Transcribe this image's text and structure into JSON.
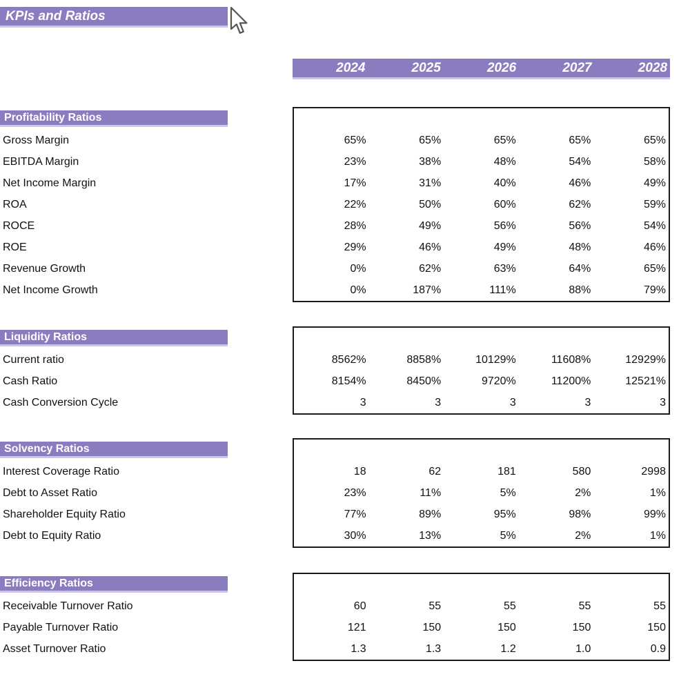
{
  "title": "KPIs and Ratios",
  "years": [
    "2024",
    "2025",
    "2026",
    "2027",
    "2028"
  ],
  "colors": {
    "accent_purple": "#8A7CBF",
    "accent_purple_light_edge": "#CDC5E9",
    "box_border": "#1A1A1A",
    "text": "#111111",
    "header_text": "#FFFFFF"
  },
  "icons": {
    "cursor": "arrow-pointer-icon"
  },
  "sections": [
    {
      "label": "Profitability Ratios",
      "rows": [
        {
          "label": "Gross Margin",
          "values": [
            "65%",
            "65%",
            "65%",
            "65%",
            "65%"
          ]
        },
        {
          "label": "EBITDA Margin",
          "values": [
            "23%",
            "38%",
            "48%",
            "54%",
            "58%"
          ]
        },
        {
          "label": "Net Income Margin",
          "values": [
            "17%",
            "31%",
            "40%",
            "46%",
            "49%"
          ]
        },
        {
          "label": "ROA",
          "values": [
            "22%",
            "50%",
            "60%",
            "62%",
            "59%"
          ]
        },
        {
          "label": "ROCE",
          "values": [
            "28%",
            "49%",
            "56%",
            "56%",
            "54%"
          ]
        },
        {
          "label": "ROE",
          "values": [
            "29%",
            "46%",
            "49%",
            "48%",
            "46%"
          ]
        },
        {
          "label": "Revenue Growth",
          "values": [
            "0%",
            "62%",
            "63%",
            "64%",
            "65%"
          ]
        },
        {
          "label": "Net Income Growth",
          "values": [
            "0%",
            "187%",
            "111%",
            "88%",
            "79%"
          ]
        }
      ]
    },
    {
      "label": "Liquidity Ratios",
      "rows": [
        {
          "label": "Current ratio",
          "values": [
            "8562%",
            "8858%",
            "10129%",
            "11608%",
            "12929%"
          ]
        },
        {
          "label": "Cash Ratio",
          "values": [
            "8154%",
            "8450%",
            "9720%",
            "11200%",
            "12521%"
          ]
        },
        {
          "label": "Cash Conversion Cycle",
          "values": [
            "3",
            "3",
            "3",
            "3",
            "3"
          ]
        }
      ]
    },
    {
      "label": "Solvency Ratios",
      "rows": [
        {
          "label": "Interest Coverage Ratio",
          "values": [
            "18",
            "62",
            "181",
            "580",
            "2998"
          ]
        },
        {
          "label": "Debt to Asset Ratio",
          "values": [
            "23%",
            "11%",
            "5%",
            "2%",
            "1%"
          ]
        },
        {
          "label": "Shareholder Equity Ratio",
          "values": [
            "77%",
            "89%",
            "95%",
            "98%",
            "99%"
          ]
        },
        {
          "label": "Debt to Equity Ratio",
          "values": [
            "30%",
            "13%",
            "5%",
            "2%",
            "1%"
          ]
        }
      ]
    },
    {
      "label": "Efficiency Ratios",
      "rows": [
        {
          "label": "Receivable Turnover Ratio",
          "values": [
            "60",
            "55",
            "55",
            "55",
            "55"
          ]
        },
        {
          "label": "Payable Turnover Ratio",
          "values": [
            "121",
            "150",
            "150",
            "150",
            "150"
          ]
        },
        {
          "label": "Asset Turnover Ratio",
          "values": [
            "1.3",
            "1.3",
            "1.2",
            "1.0",
            "0.9"
          ]
        }
      ]
    }
  ]
}
